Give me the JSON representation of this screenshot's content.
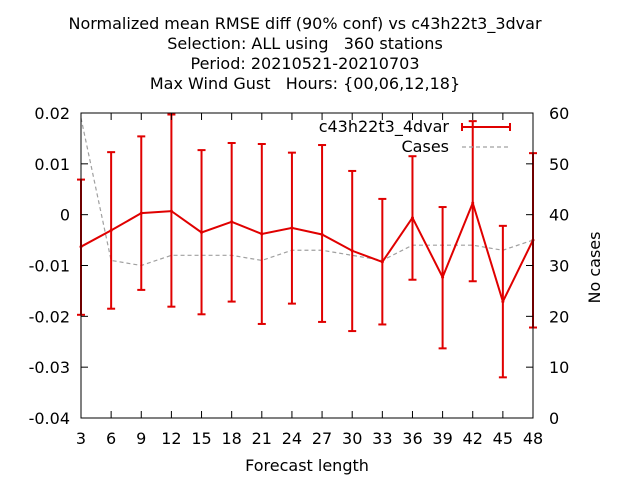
{
  "title_lines": [
    "Normalized mean RMSE diff (90% conf) vs c43h22t3_3dvar",
    "Selection: ALL using   360 stations",
    "Period: 20210521-20210703",
    "Max Wind Gust   Hours: {00,06,12,18}"
  ],
  "colors": {
    "series": "#e00000",
    "cases": "#a0a0a0",
    "axis": "#000000"
  },
  "chart_data": {
    "type": "line",
    "xlabel": "Forecast length",
    "ylabel": "",
    "y2label": "No cases",
    "x": [
      3,
      6,
      9,
      12,
      15,
      18,
      21,
      24,
      27,
      30,
      33,
      36,
      39,
      42,
      45,
      48
    ],
    "xlim": [
      3,
      48
    ],
    "ylim": [
      -0.04,
      0.02
    ],
    "y2lim": [
      0,
      60
    ],
    "yticks": [
      -0.04,
      -0.03,
      -0.02,
      -0.01,
      0,
      0.01,
      0.02
    ],
    "ytick_labels": [
      "-0.04",
      "-0.03",
      "-0.02",
      "-0.01",
      "0",
      "0.01",
      "0.02"
    ],
    "y2ticks": [
      0,
      10,
      20,
      30,
      40,
      50,
      60
    ],
    "y2tick_labels": [
      "0",
      "10",
      "20",
      "30",
      "40",
      "50",
      "60"
    ],
    "xtick_labels": [
      "3",
      "6",
      "9",
      "12",
      "15",
      "18",
      "21",
      "24",
      "27",
      "30",
      "33",
      "36",
      "39",
      "42",
      "45",
      "48"
    ],
    "legend_position": "top-right",
    "series": [
      {
        "name": "c43h22t3_4dvar",
        "axis": "y",
        "style": "line-errorbars",
        "values": [
          -0.0063,
          -0.0031,
          0.0003,
          0.0007,
          -0.0035,
          -0.0014,
          -0.0038,
          -0.0026,
          -0.0039,
          -0.0071,
          -0.0093,
          -0.0006,
          -0.0123,
          0.0023,
          -0.0171,
          -0.005
        ],
        "lower": [
          -0.0197,
          -0.0185,
          -0.0148,
          -0.0181,
          -0.0196,
          -0.0171,
          -0.0215,
          -0.0175,
          -0.0211,
          -0.0229,
          -0.0216,
          -0.0128,
          -0.0263,
          -0.0131,
          -0.032,
          -0.0222
        ],
        "upper": [
          0.0069,
          0.0123,
          0.0154,
          0.0197,
          0.0127,
          0.0141,
          0.0139,
          0.0122,
          0.0137,
          0.0086,
          0.0031,
          0.0115,
          0.0015,
          0.0184,
          -0.0022,
          0.0121
        ]
      },
      {
        "name": "Cases",
        "axis": "y2",
        "style": "dashed",
        "values": [
          59,
          31,
          30,
          32,
          32,
          32,
          31,
          33,
          33,
          32,
          31,
          34,
          34,
          34,
          33,
          35
        ]
      }
    ]
  }
}
